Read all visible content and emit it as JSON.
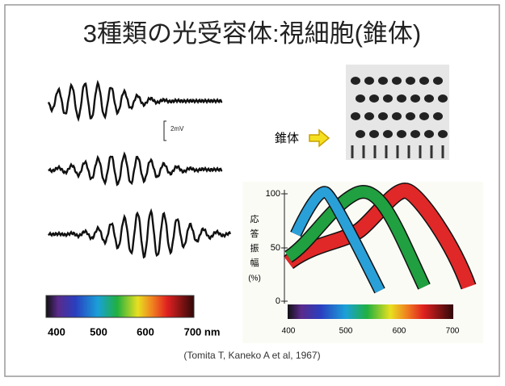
{
  "title": "3種類の光受容体:視細胞(錐体)",
  "left_panel": {
    "scale_label": "2mV",
    "wavelength_labels": [
      "400",
      "500",
      "600",
      "700 nm"
    ]
  },
  "right_panel": {
    "cell_label": "錐体",
    "chart": {
      "ylabel": [
        "応",
        "答",
        "振",
        "幅",
        "(%)"
      ],
      "yticks": [
        "100",
        "50",
        "0"
      ],
      "xticks": [
        "400",
        "500",
        "600",
        "700"
      ]
    }
  },
  "citation": "(Tomita T, Kaneko A et al, 1967)"
}
